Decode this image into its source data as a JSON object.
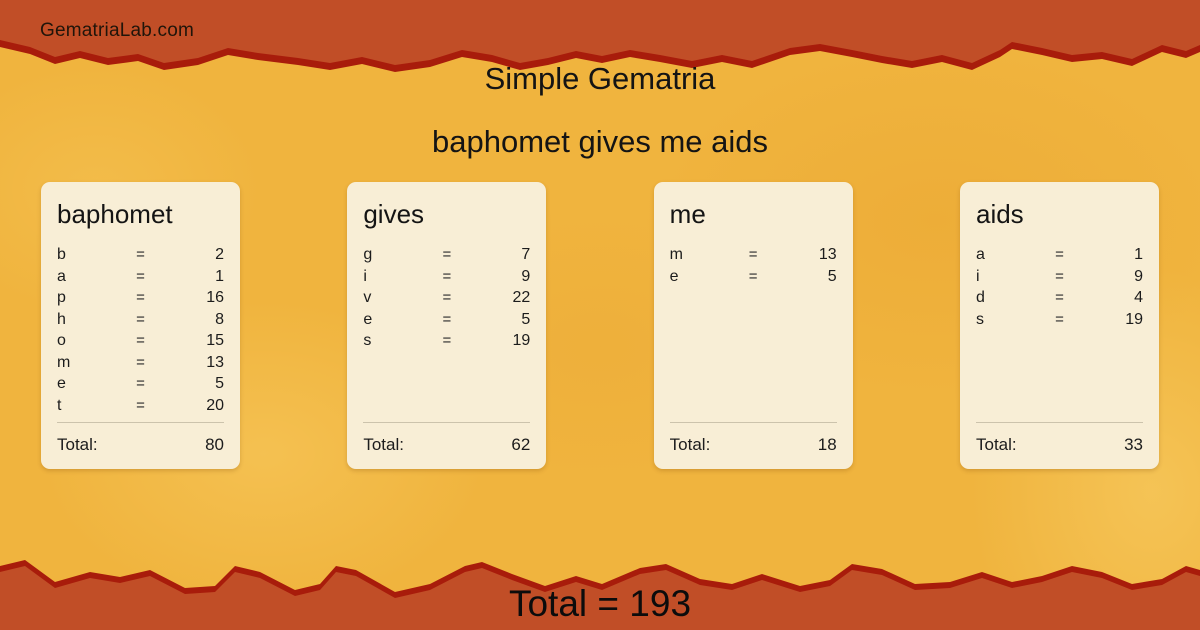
{
  "brand": "GematriaLab.com",
  "title": "Simple Gematria",
  "phrase": "baphomet gives me aids",
  "equals_sign": "=",
  "total_label": "Total:",
  "cards": [
    {
      "word": "baphomet",
      "letters": [
        {
          "letter": "b",
          "value": "2"
        },
        {
          "letter": "a",
          "value": "1"
        },
        {
          "letter": "p",
          "value": "16"
        },
        {
          "letter": "h",
          "value": "8"
        },
        {
          "letter": "o",
          "value": "15"
        },
        {
          "letter": "m",
          "value": "13"
        },
        {
          "letter": "e",
          "value": "5"
        },
        {
          "letter": "t",
          "value": "20"
        }
      ],
      "total": "80"
    },
    {
      "word": "gives",
      "letters": [
        {
          "letter": "g",
          "value": "7"
        },
        {
          "letter": "i",
          "value": "9"
        },
        {
          "letter": "v",
          "value": "22"
        },
        {
          "letter": "e",
          "value": "5"
        },
        {
          "letter": "s",
          "value": "19"
        }
      ],
      "total": "62"
    },
    {
      "word": "me",
      "letters": [
        {
          "letter": "m",
          "value": "13"
        },
        {
          "letter": "e",
          "value": "5"
        }
      ],
      "total": "18"
    },
    {
      "word": "aids",
      "letters": [
        {
          "letter": "a",
          "value": "1"
        },
        {
          "letter": "i",
          "value": "9"
        },
        {
          "letter": "d",
          "value": "4"
        },
        {
          "letter": "s",
          "value": "19"
        }
      ],
      "total": "33"
    }
  ],
  "grand_total": "Total = 193",
  "colors": {
    "band_orange": "#c14e27",
    "band_edge_red": "#a81c0b",
    "background_yellow": "#f0b43e",
    "card_background": "#f8eed6",
    "text": "#1c1c1c"
  }
}
